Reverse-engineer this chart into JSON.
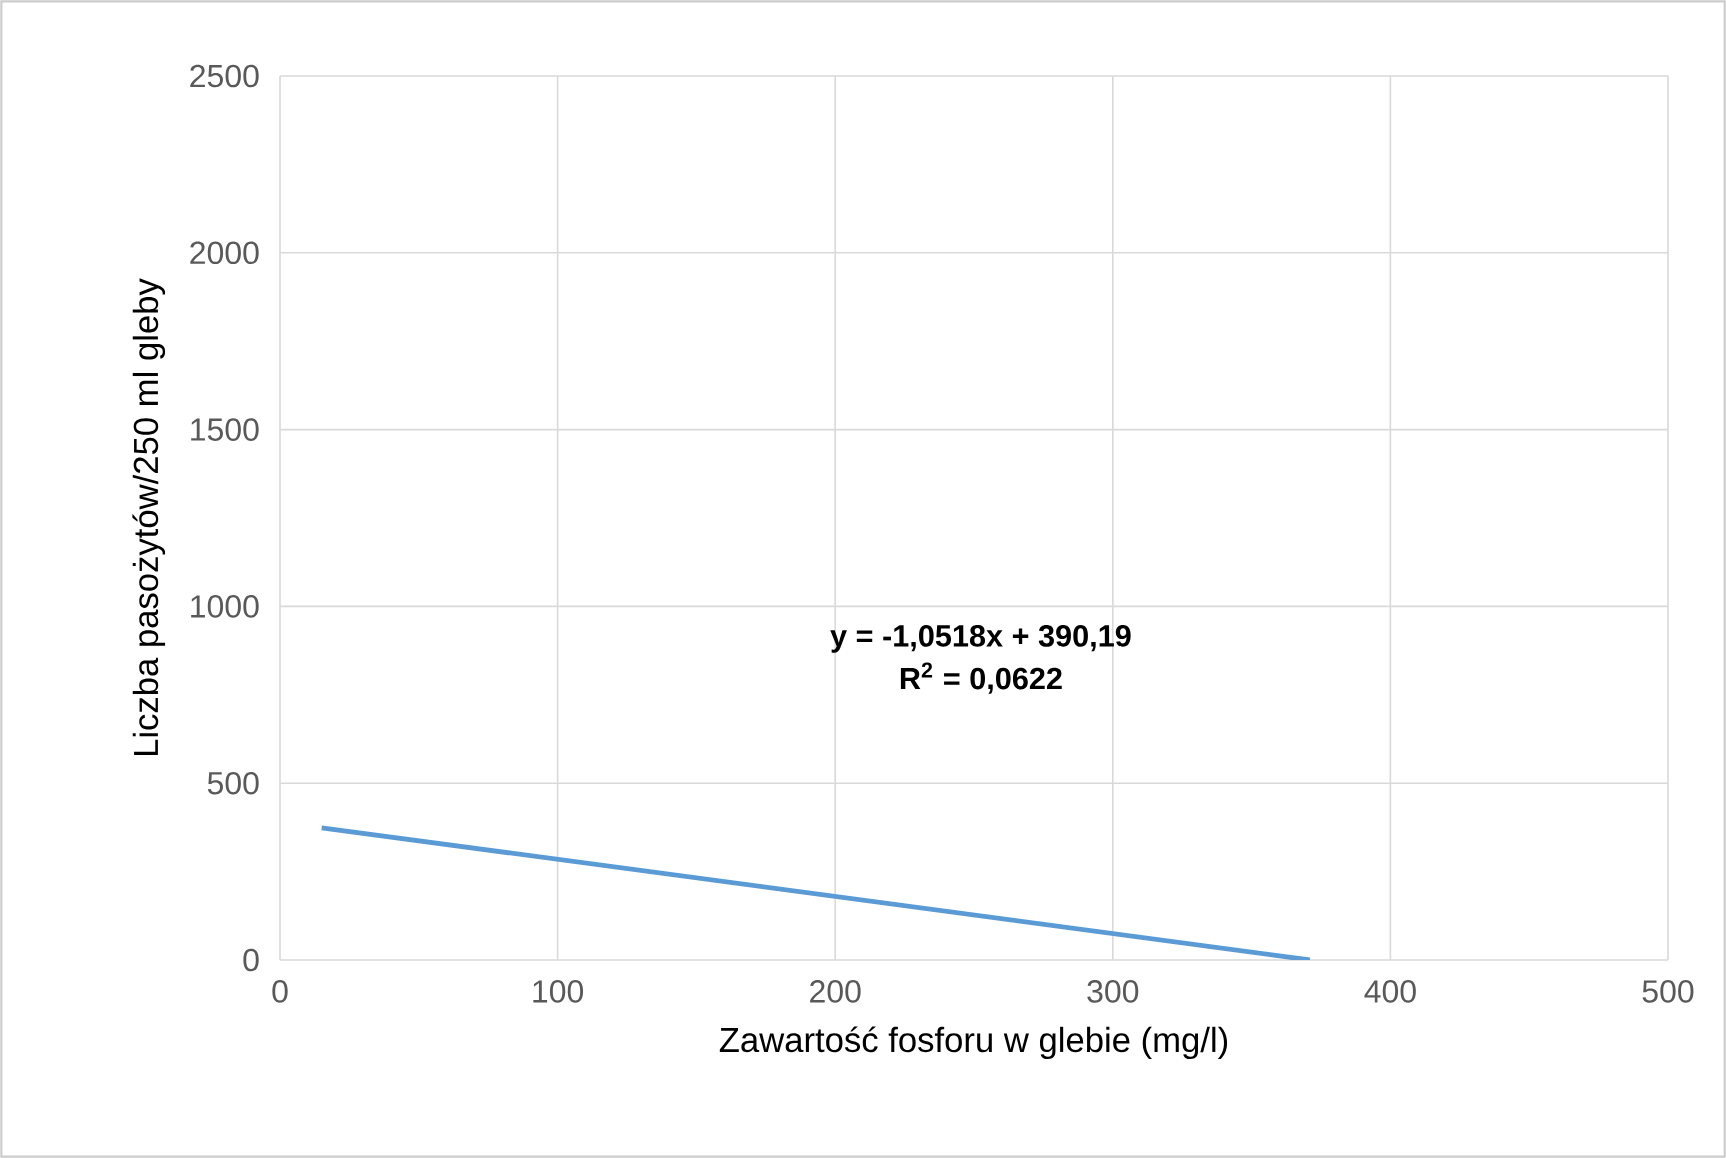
{
  "chart_data": {
    "type": "line",
    "xlabel": "Zawartość fosforu w glebie (mg/l)",
    "ylabel": "Liczba pasożytów/250 ml gleby",
    "annotations": [
      "y = -1,0518x + 390,19",
      "R$^{2}$ = 0,0622"
    ],
    "series": [
      {
        "color": "#5b9bd5",
        "x": [
          15,
          371
        ],
        "values": [
          374,
          0
        ]
      }
    ],
    "xlim": [
      0,
      500
    ],
    "ylim": [
      0,
      2500
    ],
    "xticks": [
      0,
      100,
      200,
      300,
      400,
      500
    ],
    "yticks": [
      0,
      500,
      1000,
      1500,
      2000,
      2500
    ],
    "grid": true,
    "marker": "none",
    "line_style": "solid"
  }
}
